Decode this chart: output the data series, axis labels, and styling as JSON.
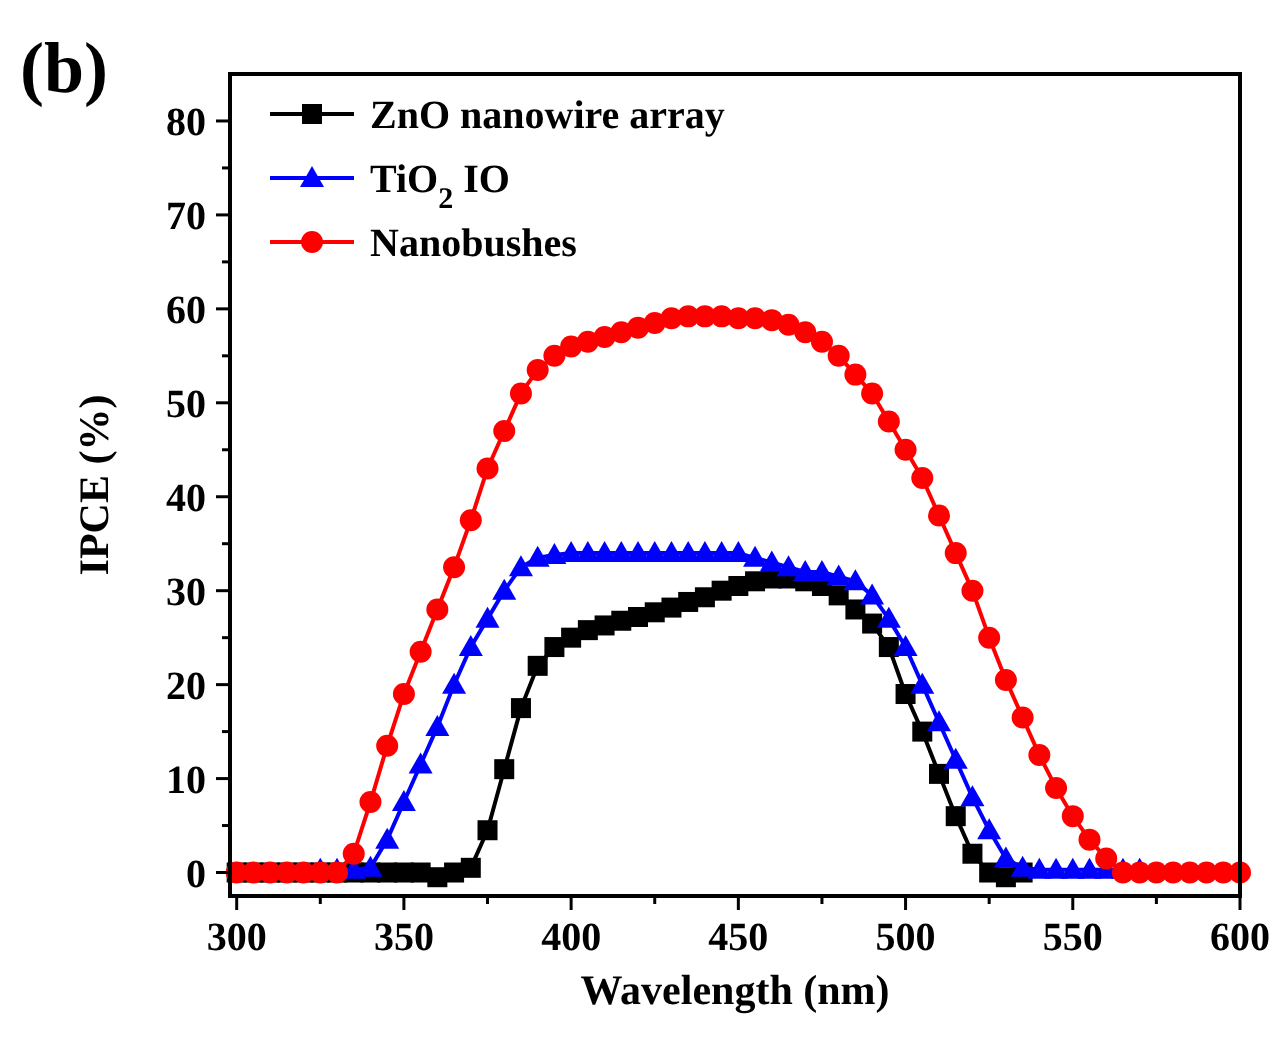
{
  "chart_data": {
    "type": "line",
    "xlabel": "Wavelength (nm)",
    "ylabel": "IPCE (%)",
    "annotations": [
      "(b)"
    ],
    "xlim": [
      298,
      600
    ],
    "ylim": [
      -2.5,
      85
    ],
    "xticks": [
      300,
      {
        "value": 325,
        "label": null
      },
      350,
      {
        "value": 375,
        "label": null
      },
      400,
      {
        "value": 425,
        "label": null
      },
      450,
      {
        "value": 475,
        "label": null
      },
      500,
      {
        "value": 525,
        "label": null
      },
      550,
      {
        "value": 575,
        "label": null
      },
      600
    ],
    "yticks": [
      0,
      {
        "value": 5,
        "label": null
      },
      10,
      {
        "value": 15,
        "label": null
      },
      20,
      {
        "value": 25,
        "label": null
      },
      30,
      {
        "value": 35,
        "label": null
      },
      40,
      {
        "value": 45,
        "label": null
      },
      50,
      {
        "value": 55,
        "label": null
      },
      60,
      {
        "value": 65,
        "label": null
      },
      70,
      {
        "value": 75,
        "label": null
      },
      80
    ],
    "grid": false,
    "legend": "top left",
    "line_style": "solid",
    "series": [
      {
        "name": "ZnO nanowire array",
        "color": "#000000",
        "marker": "square",
        "x": [
          300,
          305,
          310,
          315,
          320,
          325,
          330,
          335,
          340,
          345,
          350,
          355,
          360,
          365,
          370,
          375,
          380,
          385,
          390,
          395,
          400,
          405,
          410,
          415,
          420,
          425,
          430,
          435,
          440,
          445,
          450,
          455,
          460,
          465,
          470,
          475,
          480,
          485,
          490,
          495,
          500,
          505,
          510,
          515,
          520,
          525,
          530,
          535
        ],
        "values": [
          0,
          0,
          0,
          0,
          0,
          0,
          0,
          0,
          0,
          0,
          0,
          0,
          -0.5,
          0,
          0.5,
          4.5,
          11,
          17.5,
          22,
          24,
          25,
          25.8,
          26.3,
          26.8,
          27.2,
          27.7,
          28.2,
          28.8,
          29.3,
          30,
          30.5,
          31,
          31.3,
          31.3,
          31,
          30.5,
          29.5,
          28,
          26.5,
          24,
          19,
          15,
          10.5,
          6,
          2,
          0,
          -0.5,
          0
        ]
      },
      {
        "name": "TiO$_{2}$ IO",
        "color": "#0000ff",
        "marker": "triangle",
        "x": [
          325,
          330,
          335,
          340,
          345,
          350,
          355,
          360,
          365,
          370,
          375,
          380,
          385,
          390,
          395,
          400,
          405,
          410,
          415,
          420,
          425,
          430,
          435,
          440,
          445,
          450,
          455,
          460,
          465,
          470,
          475,
          480,
          485,
          490,
          495,
          500,
          505,
          510,
          515,
          520,
          525,
          530,
          535,
          540,
          545,
          550,
          555,
          560,
          565,
          570
        ],
        "values": [
          0.3,
          0.3,
          0.3,
          0.5,
          3.5,
          7.5,
          11.5,
          15.5,
          20,
          24,
          27,
          30,
          32.5,
          33.5,
          33.8,
          34,
          34,
          34,
          34,
          34,
          34,
          34,
          34,
          34,
          34,
          34,
          33.5,
          33,
          32.5,
          32,
          32,
          31.5,
          31,
          29.5,
          27,
          24,
          20,
          16,
          12,
          8,
          4.5,
          1.5,
          0.5,
          0.3,
          0.3,
          0.3,
          0.3,
          0.3,
          0.3,
          0.3
        ]
      },
      {
        "name": "Nanobushes",
        "color": "#ff0000",
        "marker": "circle",
        "x": [
          300,
          305,
          310,
          315,
          320,
          325,
          330,
          335,
          340,
          345,
          350,
          355,
          360,
          365,
          370,
          375,
          380,
          385,
          390,
          395,
          400,
          405,
          410,
          415,
          420,
          425,
          430,
          435,
          440,
          445,
          450,
          455,
          460,
          465,
          470,
          475,
          480,
          485,
          490,
          495,
          500,
          505,
          510,
          515,
          520,
          525,
          530,
          535,
          540,
          545,
          550,
          555,
          560,
          565,
          570,
          575,
          580,
          585,
          590,
          595,
          600
        ],
        "values": [
          0,
          0,
          0,
          0,
          0,
          0,
          0,
          2,
          7.5,
          13.5,
          19,
          23.5,
          28,
          32.5,
          37.5,
          43,
          47,
          51,
          53.5,
          55,
          56,
          56.5,
          57,
          57.5,
          58,
          58.5,
          59,
          59.2,
          59.2,
          59.2,
          59,
          59,
          58.8,
          58.3,
          57.5,
          56.5,
          55,
          53,
          51,
          48,
          45,
          42,
          38,
          34,
          30,
          25,
          20.5,
          16.5,
          12.5,
          9,
          6,
          3.5,
          1.5,
          0,
          0,
          0,
          0,
          0,
          0,
          0,
          0
        ]
      }
    ]
  }
}
